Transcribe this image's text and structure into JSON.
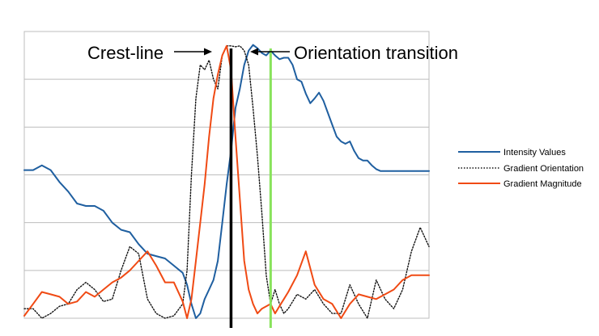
{
  "chart_data": {
    "type": "line",
    "title": "",
    "xlabel": "",
    "ylabel": "",
    "x_range": [
      0,
      46
    ],
    "ylim": [
      0,
      6
    ],
    "grid": "horizontal",
    "legend_position": "right",
    "series": [
      {
        "name": "Intensity Values",
        "color": "#1F5FA0",
        "dash": "solid",
        "values": [
          [
            0,
            3.1
          ],
          [
            1,
            3.1
          ],
          [
            2,
            3.2
          ],
          [
            3,
            3.1
          ],
          [
            4,
            2.85
          ],
          [
            5,
            2.65
          ],
          [
            6,
            2.4
          ],
          [
            7,
            2.35
          ],
          [
            8,
            2.35
          ],
          [
            9,
            2.25
          ],
          [
            10,
            2.0
          ],
          [
            11,
            1.85
          ],
          [
            12,
            1.8
          ],
          [
            13,
            1.55
          ],
          [
            14,
            1.35
          ],
          [
            15,
            1.3
          ],
          [
            16,
            1.25
          ],
          [
            17,
            1.1
          ],
          [
            18,
            0.95
          ],
          [
            18.5,
            0.7
          ],
          [
            19,
            0.3
          ],
          [
            19.5,
            0.0
          ],
          [
            20,
            0.1
          ],
          [
            20.5,
            0.4
          ],
          [
            21,
            0.6
          ],
          [
            21.5,
            0.8
          ],
          [
            22,
            1.2
          ],
          [
            22.5,
            2.0
          ],
          [
            23,
            2.8
          ],
          [
            23.5,
            3.5
          ],
          [
            24,
            4.4
          ],
          [
            24.5,
            4.8
          ],
          [
            25,
            5.3
          ],
          [
            25.5,
            5.6
          ],
          [
            26,
            5.72
          ],
          [
            26.5,
            5.65
          ],
          [
            27,
            5.55
          ],
          [
            27.5,
            5.5
          ],
          [
            28,
            5.6
          ],
          [
            28.5,
            5.5
          ],
          [
            29,
            5.42
          ],
          [
            29.5,
            5.45
          ],
          [
            30,
            5.45
          ],
          [
            30.5,
            5.3
          ],
          [
            31,
            5.0
          ],
          [
            31.5,
            4.95
          ],
          [
            32,
            4.7
          ],
          [
            32.5,
            4.5
          ],
          [
            33,
            4.6
          ],
          [
            33.5,
            4.72
          ],
          [
            34,
            4.55
          ],
          [
            34.5,
            4.3
          ],
          [
            35,
            4.05
          ],
          [
            35.5,
            3.8
          ],
          [
            36,
            3.7
          ],
          [
            36.5,
            3.65
          ],
          [
            37,
            3.7
          ],
          [
            37.5,
            3.5
          ],
          [
            38,
            3.35
          ],
          [
            38.5,
            3.3
          ],
          [
            39,
            3.3
          ],
          [
            39.5,
            3.2
          ],
          [
            40,
            3.12
          ],
          [
            40.5,
            3.08
          ],
          [
            41,
            3.08
          ],
          [
            46,
            3.08
          ]
        ]
      },
      {
        "name": "Gradient Orientation",
        "color": "#111111",
        "dash": "dotted",
        "values": [
          [
            0,
            0.2
          ],
          [
            1,
            0.2
          ],
          [
            2,
            0.0
          ],
          [
            3,
            0.1
          ],
          [
            4,
            0.25
          ],
          [
            5,
            0.3
          ],
          [
            6,
            0.6
          ],
          [
            7,
            0.75
          ],
          [
            8,
            0.6
          ],
          [
            9,
            0.35
          ],
          [
            10,
            0.4
          ],
          [
            11,
            1.0
          ],
          [
            12,
            1.5
          ],
          [
            13,
            1.35
          ],
          [
            14,
            0.4
          ],
          [
            15,
            0.1
          ],
          [
            16,
            0.0
          ],
          [
            17,
            0.05
          ],
          [
            18,
            0.3
          ],
          [
            18.5,
            1.0
          ],
          [
            19,
            3.0
          ],
          [
            19.5,
            4.6
          ],
          [
            20,
            5.3
          ],
          [
            20.5,
            5.2
          ],
          [
            21,
            5.4
          ],
          [
            21.5,
            5.0
          ],
          [
            22,
            4.8
          ],
          [
            22.5,
            5.5
          ],
          [
            23,
            5.7
          ],
          [
            23.5,
            5.7
          ],
          [
            24,
            5.68
          ],
          [
            24.5,
            5.7
          ],
          [
            25,
            5.6
          ],
          [
            25.5,
            5.3
          ],
          [
            26,
            4.4
          ],
          [
            26.5,
            3.4
          ],
          [
            27,
            2.2
          ],
          [
            27.5,
            0.9
          ],
          [
            28,
            0.3
          ],
          [
            28.5,
            0.6
          ],
          [
            29,
            0.3
          ],
          [
            29.5,
            0.1
          ],
          [
            30,
            0.2
          ],
          [
            31,
            0.5
          ],
          [
            32,
            0.4
          ],
          [
            33,
            0.6
          ],
          [
            34,
            0.3
          ],
          [
            35,
            0.1
          ],
          [
            36,
            0.1
          ],
          [
            37,
            0.7
          ],
          [
            38,
            0.3
          ],
          [
            39,
            0.0
          ],
          [
            40,
            0.8
          ],
          [
            41,
            0.4
          ],
          [
            42,
            0.2
          ],
          [
            43,
            0.6
          ],
          [
            44,
            1.4
          ],
          [
            45,
            1.9
          ],
          [
            46,
            1.5
          ]
        ]
      },
      {
        "name": "Gradient Magnitude",
        "color": "#F04A14",
        "dash": "solid",
        "values": [
          [
            0,
            0.05
          ],
          [
            1,
            0.3
          ],
          [
            2,
            0.55
          ],
          [
            3,
            0.5
          ],
          [
            4,
            0.45
          ],
          [
            5,
            0.3
          ],
          [
            6,
            0.35
          ],
          [
            7,
            0.55
          ],
          [
            8,
            0.45
          ],
          [
            9,
            0.6
          ],
          [
            10,
            0.75
          ],
          [
            11,
            0.85
          ],
          [
            12,
            1.0
          ],
          [
            13,
            1.2
          ],
          [
            14,
            1.4
          ],
          [
            15,
            1.1
          ],
          [
            16,
            0.75
          ],
          [
            17,
            0.75
          ],
          [
            18,
            0.35
          ],
          [
            18.5,
            0.0
          ],
          [
            19,
            0.4
          ],
          [
            19.5,
            1.2
          ],
          [
            20,
            2.0
          ],
          [
            20.5,
            2.8
          ],
          [
            21,
            3.8
          ],
          [
            21.5,
            4.6
          ],
          [
            22,
            5.1
          ],
          [
            22.5,
            5.5
          ],
          [
            23,
            5.7
          ],
          [
            23.5,
            5.2
          ],
          [
            24,
            3.8
          ],
          [
            24.5,
            2.5
          ],
          [
            25,
            1.2
          ],
          [
            25.5,
            0.6
          ],
          [
            26,
            0.3
          ],
          [
            26.5,
            0.1
          ],
          [
            27,
            0.2
          ],
          [
            27.5,
            0.25
          ],
          [
            28,
            0.3
          ],
          [
            28.5,
            0.1
          ],
          [
            29,
            0.25
          ],
          [
            29.5,
            0.4
          ],
          [
            30,
            0.55
          ],
          [
            31,
            0.9
          ],
          [
            32,
            1.4
          ],
          [
            33,
            0.7
          ],
          [
            34,
            0.4
          ],
          [
            35,
            0.3
          ],
          [
            36,
            0.0
          ],
          [
            37,
            0.3
          ],
          [
            38,
            0.5
          ],
          [
            39,
            0.45
          ],
          [
            40,
            0.4
          ],
          [
            41,
            0.5
          ],
          [
            42,
            0.6
          ],
          [
            43,
            0.8
          ],
          [
            44,
            0.9
          ],
          [
            45,
            0.9
          ],
          [
            46,
            0.9
          ]
        ]
      }
    ],
    "markers": [
      {
        "label": "Crest-line",
        "x": 23.5,
        "color": "#000000"
      },
      {
        "label": "Orientation transition",
        "x": 28.0,
        "color": "#88E35B"
      }
    ]
  }
}
